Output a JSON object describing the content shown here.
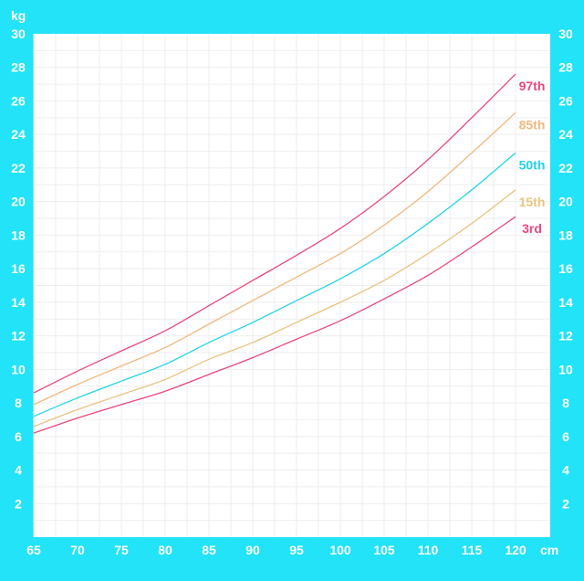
{
  "chart_data": {
    "type": "line",
    "xlabel": "cm",
    "ylabel": "kg",
    "xlim": [
      65,
      122
    ],
    "ylim": [
      0,
      30
    ],
    "x_ticks": [
      "65",
      "70",
      "75",
      "80",
      "85",
      "90",
      "95",
      "100",
      "105",
      "110",
      "115",
      "120"
    ],
    "y_ticks": [
      "2",
      "4",
      "6",
      "8",
      "10",
      "12",
      "14",
      "16",
      "18",
      "20",
      "22",
      "24",
      "26",
      "28",
      "30"
    ],
    "grid": true,
    "x": [
      65,
      70,
      75,
      80,
      85,
      90,
      95,
      100,
      105,
      110,
      115,
      120
    ],
    "series": [
      {
        "name": "97th",
        "color": "#e8487e",
        "values": [
          8.6,
          9.9,
          11.1,
          12.3,
          13.8,
          15.3,
          16.8,
          18.4,
          20.3,
          22.5,
          25.0,
          27.6
        ]
      },
      {
        "name": "85th",
        "color": "#f0b87e",
        "values": [
          7.9,
          9.1,
          10.2,
          11.3,
          12.7,
          14.1,
          15.5,
          16.9,
          18.6,
          20.6,
          22.9,
          25.3
        ]
      },
      {
        "name": "50th",
        "color": "#22d4ea",
        "values": [
          7.2,
          8.3,
          9.3,
          10.3,
          11.6,
          12.8,
          14.1,
          15.4,
          16.9,
          18.7,
          20.7,
          22.9
        ]
      },
      {
        "name": "15th",
        "color": "#e8c480",
        "values": [
          6.6,
          7.6,
          8.5,
          9.4,
          10.6,
          11.6,
          12.8,
          14.0,
          15.3,
          16.9,
          18.7,
          20.7
        ]
      },
      {
        "name": "3rd",
        "color": "#e8487e",
        "values": [
          6.2,
          7.1,
          7.9,
          8.7,
          9.7,
          10.7,
          11.8,
          12.9,
          14.2,
          15.6,
          17.3,
          19.1
        ]
      }
    ]
  }
}
